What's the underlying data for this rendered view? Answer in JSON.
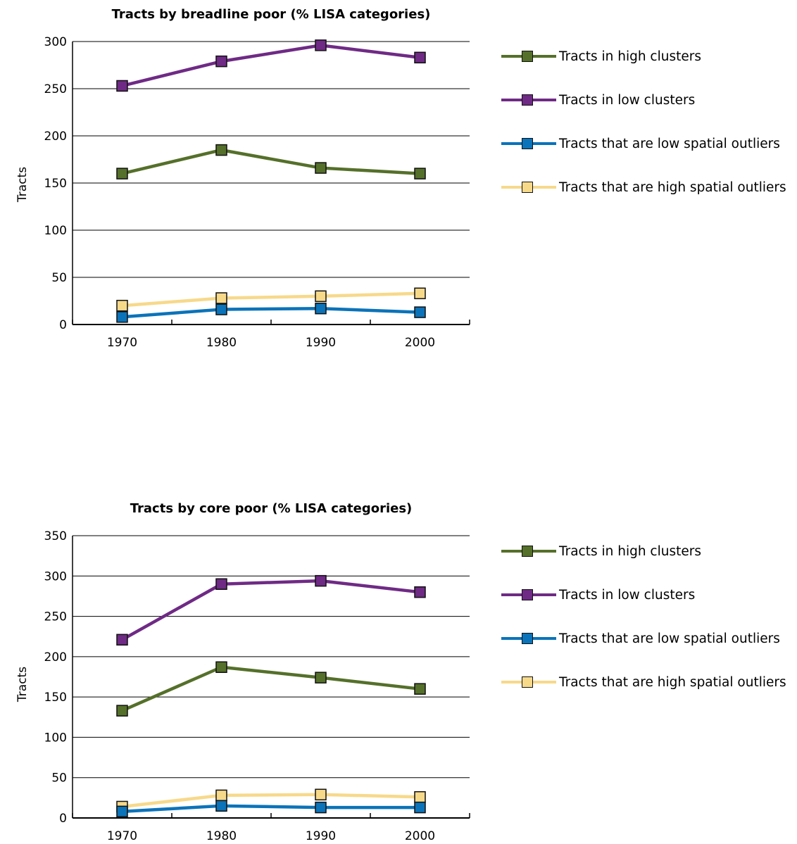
{
  "chart_data": [
    {
      "type": "line",
      "title": "Tracts by breadline poor (% LISA categories)",
      "xlabel": "",
      "ylabel": "Tracts",
      "categories": [
        "1970",
        "1980",
        "1990",
        "2000"
      ],
      "ylim": [
        0,
        300
      ],
      "yticks": [
        "0",
        "50",
        "100",
        "150",
        "200",
        "250",
        "300"
      ],
      "grid": true,
      "legend_position": "right",
      "series": [
        {
          "name": "Tracts in high clusters",
          "values": [
            160,
            185,
            166,
            160
          ],
          "color": "#55702a"
        },
        {
          "name": "Tracts in low clusters",
          "values": [
            253,
            279,
            296,
            283
          ],
          "color": "#6f2a85"
        },
        {
          "name": "Tracts that are low spatial outliers",
          "values": [
            8,
            16,
            17,
            13
          ],
          "color": "#0b73b9"
        },
        {
          "name": "Tracts that are high spatial outliers",
          "values": [
            20,
            28,
            30,
            33
          ],
          "color": "#f7d98a"
        }
      ]
    },
    {
      "type": "line",
      "title": "Tracts by core poor (% LISA categories)",
      "xlabel": "",
      "ylabel": "Tracts",
      "categories": [
        "1970",
        "1980",
        "1990",
        "2000"
      ],
      "ylim": [
        0,
        350
      ],
      "yticks": [
        "0",
        "50",
        "100",
        "150",
        "200",
        "250",
        "300",
        "350"
      ],
      "grid": true,
      "legend_position": "right",
      "series": [
        {
          "name": "Tracts in high clusters",
          "values": [
            133,
            187,
            174,
            160
          ],
          "color": "#55702a"
        },
        {
          "name": "Tracts in low clusters",
          "values": [
            221,
            290,
            294,
            280
          ],
          "color": "#6f2a85"
        },
        {
          "name": "Tracts that are low spatial outliers",
          "values": [
            8,
            15,
            13,
            13
          ],
          "color": "#0b73b9"
        },
        {
          "name": "Tracts that are high spatial outliers",
          "values": [
            14,
            28,
            29,
            26
          ],
          "color": "#f7d98a"
        }
      ]
    }
  ]
}
